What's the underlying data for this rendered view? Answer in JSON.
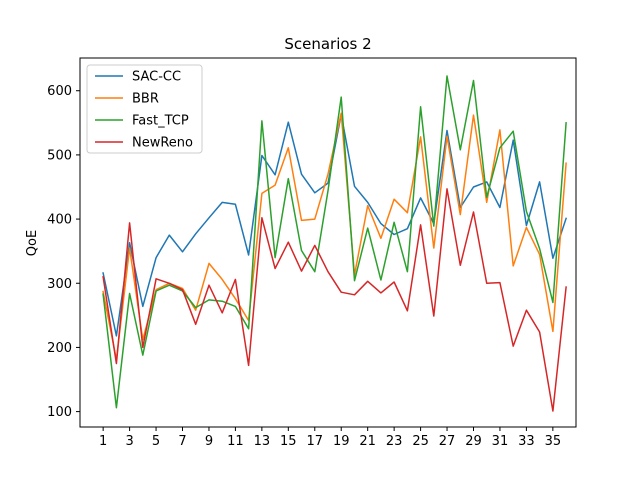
{
  "chart_data": {
    "type": "line",
    "title": "Scenarios 2",
    "xlabel": "",
    "ylabel": "QoE",
    "xlim": [
      -0.75,
      36.75
    ],
    "ylim": [
      76,
      651
    ],
    "x": [
      1,
      2,
      3,
      4,
      5,
      6,
      7,
      8,
      9,
      10,
      11,
      12,
      13,
      14,
      15,
      16,
      17,
      18,
      19,
      20,
      21,
      22,
      23,
      24,
      25,
      26,
      27,
      28,
      29,
      30,
      31,
      32,
      33,
      34,
      35,
      36
    ],
    "x_ticks": [
      1,
      3,
      5,
      7,
      9,
      11,
      13,
      15,
      17,
      19,
      21,
      23,
      25,
      27,
      29,
      31,
      33,
      35
    ],
    "y_ticks": [
      100,
      200,
      300,
      400,
      500,
      600
    ],
    "grid": false,
    "legend_position": "upper-left",
    "series": [
      {
        "name": "SAC-CC",
        "color": "#1f77b4",
        "values": [
          316,
          218,
          363,
          264,
          340,
          375,
          349,
          377,
          402,
          426,
          423,
          344,
          499,
          469,
          551,
          470,
          441,
          456,
          563,
          451,
          426,
          393,
          376,
          385,
          433,
          393,
          538,
          418,
          450,
          458,
          418,
          523,
          390,
          458,
          339,
          401
        ]
      },
      {
        "name": "BBR",
        "color": "#ff7f0e",
        "values": [
          287,
          181,
          355,
          212,
          290,
          300,
          292,
          258,
          331,
          306,
          276,
          242,
          440,
          453,
          511,
          398,
          400,
          470,
          565,
          313,
          421,
          370,
          431,
          410,
          528,
          355,
          529,
          407,
          562,
          426,
          539,
          327,
          387,
          345,
          225,
          487
        ]
      },
      {
        "name": "Fast_TCP",
        "color": "#2ca02c",
        "values": [
          283,
          106,
          284,
          188,
          288,
          297,
          288,
          262,
          274,
          272,
          264,
          229,
          553,
          340,
          463,
          351,
          318,
          444,
          590,
          304,
          386,
          305,
          395,
          318,
          575,
          389,
          623,
          508,
          616,
          434,
          511,
          537,
          412,
          354,
          270,
          550
        ]
      },
      {
        "name": "NewReno",
        "color": "#d62728",
        "values": [
          310,
          175,
          394,
          200,
          307,
          300,
          290,
          236,
          297,
          254,
          306,
          172,
          402,
          323,
          364,
          319,
          359,
          318,
          286,
          282,
          303,
          285,
          302,
          257,
          391,
          249,
          447,
          328,
          411,
          300,
          301,
          202,
          258,
          224,
          101,
          294
        ]
      }
    ]
  }
}
